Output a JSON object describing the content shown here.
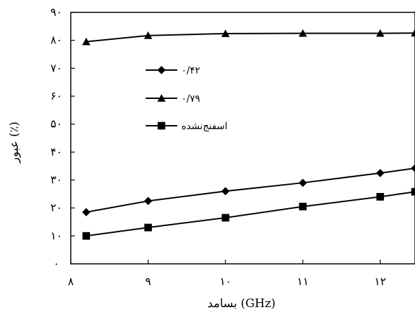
{
  "chart_data": {
    "type": "line",
    "xlabel": "بسامد (GHz)",
    "ylabel": "عبور (٪)",
    "xlim": [
      8,
      12.45
    ],
    "ylim": [
      0,
      90
    ],
    "x_ticks": [
      {
        "value": 8,
        "label": "۸"
      },
      {
        "value": 9,
        "label": "۹"
      },
      {
        "value": 10,
        "label": "۱۰"
      },
      {
        "value": 11,
        "label": "۱۱"
      },
      {
        "value": 12,
        "label": "۱۲"
      }
    ],
    "y_ticks": [
      {
        "value": 0,
        "label": "۰"
      },
      {
        "value": 10,
        "label": "۱۰"
      },
      {
        "value": 20,
        "label": "۲۰"
      },
      {
        "value": 30,
        "label": "۳۰"
      },
      {
        "value": 40,
        "label": "۴۰"
      },
      {
        "value": 50,
        "label": "۵۰"
      },
      {
        "value": 60,
        "label": "۶۰"
      },
      {
        "value": 70,
        "label": "۷۰"
      },
      {
        "value": 80,
        "label": "۸۰"
      },
      {
        "value": 90,
        "label": "۹۰"
      }
    ],
    "grid": false,
    "legend_position": "upper-center",
    "series": [
      {
        "name": "۰/۴۲",
        "marker": "diamond",
        "color": "#000000",
        "x": [
          8.2,
          9.0,
          10.0,
          11.0,
          12.0,
          12.45
        ],
        "y": [
          18.5,
          22.5,
          26,
          29,
          32.5,
          34.2
        ]
      },
      {
        "name": "۰/۷۹",
        "marker": "triangle",
        "color": "#000000",
        "x": [
          8.2,
          9.0,
          10.0,
          11.0,
          12.0,
          12.45
        ],
        "y": [
          79.5,
          81.7,
          82.4,
          82.5,
          82.5,
          82.6
        ]
      },
      {
        "name": "اسفنج‌نشده",
        "marker": "square",
        "color": "#000000",
        "x": [
          8.2,
          9.0,
          10.0,
          11.0,
          12.0,
          12.45
        ],
        "y": [
          10,
          13,
          16.5,
          20.5,
          24,
          25.8
        ]
      }
    ]
  }
}
